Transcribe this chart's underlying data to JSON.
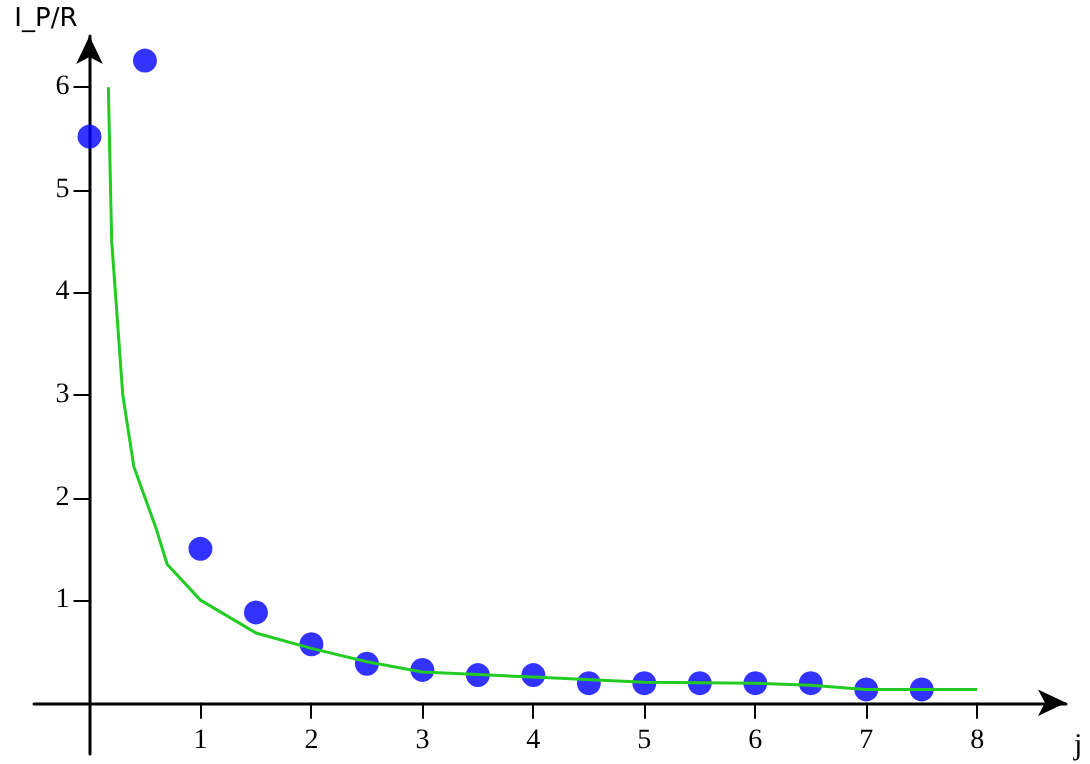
{
  "chart_data": {
    "type": "scatter",
    "xlabel": "j",
    "ylabel": "I_P/R",
    "xlim": [
      -0.5,
      8.8
    ],
    "ylim": [
      -0.5,
      6.5
    ],
    "xticks": [
      1,
      2,
      3,
      4,
      5,
      6,
      7,
      8
    ],
    "yticks": [
      1,
      2,
      3,
      4,
      5,
      6
    ],
    "grid": false,
    "marker": "circle",
    "series": [
      {
        "color": "#0000ff",
        "x": [
          0,
          0.5,
          1,
          1.5,
          2,
          2.5,
          3,
          3.5,
          4,
          4.5,
          5,
          5.5,
          6,
          6.5,
          7,
          7.5
        ],
        "values": [
          5.52,
          6.26,
          1.5,
          0.88,
          0.57,
          0.38,
          0.32,
          0.27,
          0.27,
          0.19,
          0.19,
          0.19,
          0.19,
          0.19,
          0.13,
          0.13
        ]
      },
      {
        "type": "line",
        "color": "#22cc22",
        "marker": "none",
        "line_style": "solid",
        "x": [
          0.17,
          0.2,
          0.3,
          0.4,
          0.6,
          0.7,
          1,
          1.5,
          2,
          2.5,
          3,
          4,
          5,
          6,
          6.5,
          7,
          8
        ],
        "values": [
          6,
          4.5,
          3,
          2.3,
          1.7,
          1.35,
          1.0,
          0.68,
          0.53,
          0.4,
          0.3,
          0.25,
          0.2,
          0.19,
          0.17,
          0.13,
          0.13
        ]
      }
    ]
  }
}
